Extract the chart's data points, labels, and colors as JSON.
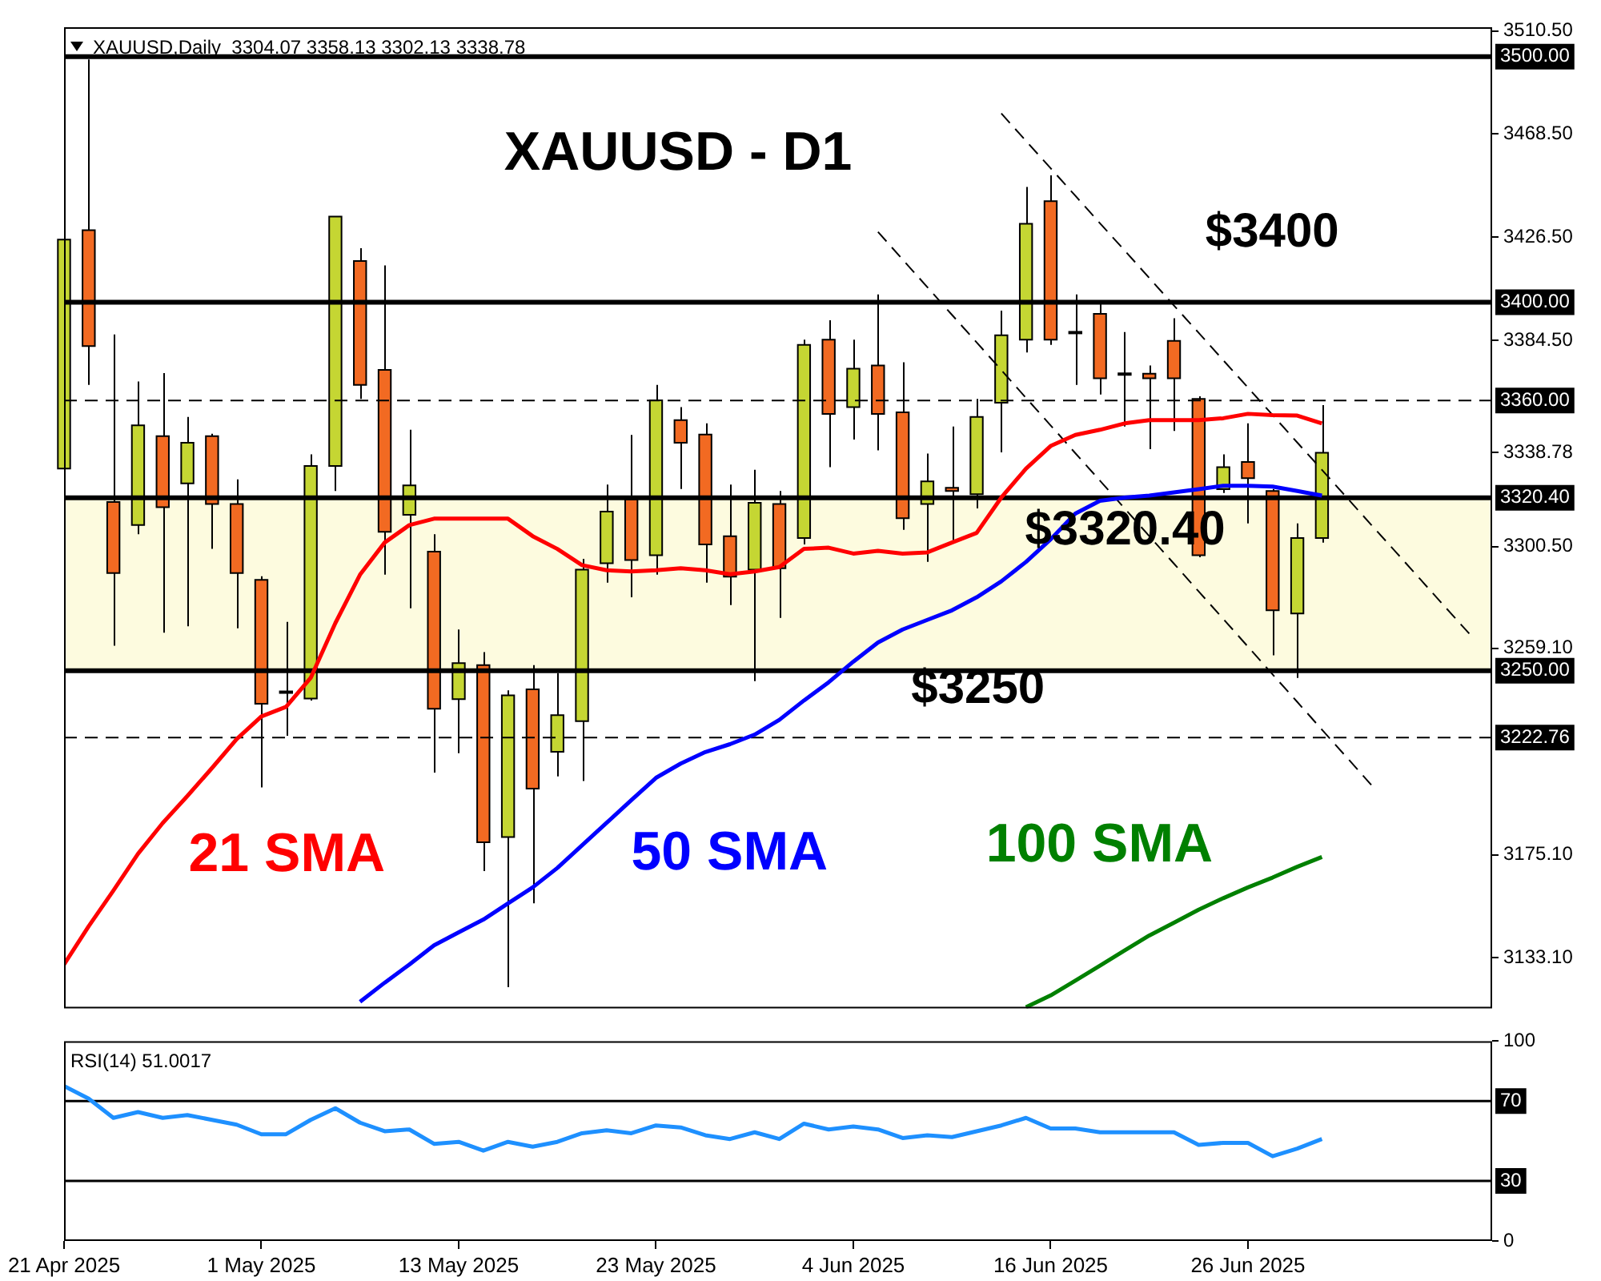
{
  "chart_data": [
    {
      "type": "candlestick",
      "title": "XAUUSD,Daily  3304.07 3358.13 3302.13 3338.78",
      "subtitle": "XAUUSD - D1",
      "categories": [
        null,
        null,
        null,
        null,
        null,
        null,
        null,
        null,
        null,
        null,
        null,
        null,
        null,
        null,
        null,
        null,
        null,
        null,
        null,
        null,
        null,
        null,
        null,
        null,
        null,
        null,
        null,
        null,
        null,
        null,
        null,
        null,
        null,
        null,
        null,
        null,
        null,
        null,
        null,
        null,
        null,
        null,
        null,
        null,
        null,
        null,
        null,
        null,
        null,
        null,
        null,
        null,
        null,
        null,
        null,
        null,
        null,
        null
      ],
      "ohlc": [
        [
          3332.3,
          3430.7,
          3330.0,
          3425.5
        ],
        [
          3429.4,
          3498.9,
          3366.4,
          3382.2
        ],
        [
          3318.7,
          3386.9,
          3260.2,
          3289.8
        ],
        [
          3309.3,
          3367.8,
          3305.6,
          3349.9
        ],
        [
          3345.5,
          3371.2,
          3265.5,
          3316.6
        ],
        [
          3326.3,
          3353.3,
          3268.1,
          3342.8
        ],
        [
          3345.5,
          3346.5,
          3299.6,
          3317.9
        ],
        [
          3317.9,
          3327.9,
          3267.3,
          3289.8
        ],
        [
          3287.0,
          3288.5,
          3202.5,
          3236.6
        ],
        [
          3241.0,
          3269.9,
          3223.5,
          3241.6
        ],
        [
          3238.7,
          3338.1,
          3237.9,
          3333.4
        ],
        [
          3333.4,
          3435.0,
          3323.2,
          3434.9
        ],
        [
          3416.8,
          3422.0,
          3360.7,
          3366.4
        ],
        [
          3372.5,
          3415.0,
          3289.1,
          3306.6
        ],
        [
          3313.5,
          3348.1,
          3275.4,
          3325.5
        ],
        [
          3298.5,
          3305.6,
          3208.5,
          3234.5
        ],
        [
          3238.4,
          3266.8,
          3216.4,
          3253.1
        ],
        [
          3252.3,
          3257.6,
          3168.4,
          3180.2
        ],
        [
          3182.3,
          3242.0,
          3121.2,
          3240.0
        ],
        [
          3242.4,
          3252.3,
          3155.3,
          3202.0
        ],
        [
          3217.0,
          3249.0,
          3207.0,
          3231.9
        ],
        [
          3229.5,
          3295.6,
          3205.1,
          3291.2
        ],
        [
          3293.8,
          3325.8,
          3285.9,
          3314.8
        ],
        [
          3319.8,
          3346.0,
          3279.9,
          3295.1
        ],
        [
          3297.0,
          3366.4,
          3289.1,
          3360.1
        ],
        [
          3352.0,
          3357.3,
          3324.0,
          3342.8
        ],
        [
          3346.2,
          3350.7,
          3285.9,
          3301.4
        ],
        [
          3304.8,
          3325.8,
          3276.7,
          3288.3
        ],
        [
          3291.2,
          3331.8,
          3245.8,
          3318.4
        ],
        [
          3317.9,
          3323.2,
          3271.5,
          3291.7
        ],
        [
          3304.0,
          3384.8,
          3301.4,
          3382.7
        ],
        [
          3384.8,
          3392.7,
          3332.9,
          3354.6
        ],
        [
          3357.3,
          3384.8,
          3344.1,
          3373.0
        ],
        [
          3374.3,
          3403.2,
          3339.7,
          3354.6
        ],
        [
          3355.2,
          3375.6,
          3307.4,
          3312.1
        ],
        [
          3317.9,
          3338.4,
          3294.3,
          3327.1
        ],
        [
          3324.5,
          3349.4,
          3303.0,
          3323.2
        ],
        [
          3321.9,
          3360.7,
          3316.1,
          3353.3
        ],
        [
          3359.1,
          3396.6,
          3338.9,
          3386.6
        ],
        [
          3384.8,
          3447.0,
          3379.6,
          3432.0
        ],
        [
          3441.2,
          3451.7,
          3382.7,
          3384.8
        ],
        [
          3388.0,
          3403.2,
          3366.4,
          3387.9
        ],
        [
          3395.3,
          3399.2,
          3362.5,
          3369.1
        ],
        [
          3371.0,
          3387.9,
          3349.4,
          3371.1
        ],
        [
          3370.9,
          3374.3,
          3340.2,
          3369.1
        ],
        [
          3384.3,
          3393.5,
          3347.6,
          3369.1
        ],
        [
          3360.7,
          3361.7,
          3296.2,
          3297.0
        ],
        [
          3323.9,
          3338.1,
          3322.4,
          3332.9
        ],
        [
          3335.0,
          3350.7,
          3310.0,
          3328.4
        ],
        [
          3323.2,
          3324.0,
          3256.3,
          3274.6
        ],
        [
          3273.3,
          3310.0,
          3247.1,
          3304.0
        ],
        [
          3304.07,
          3358.13,
          3302.13,
          3338.78
        ],
        null,
        null,
        null,
        null,
        null,
        null
      ],
      "colors": [
        "#c5d633",
        "#f26a22",
        "#f26a22",
        "#c5d633",
        "#f26a22",
        "#c5d633",
        "#f26a22",
        "#f26a22",
        "#f26a22",
        "#c5d633",
        "#c5d633",
        "#c5d633",
        "#f26a22",
        "#f26a22",
        "#c5d633",
        "#f26a22",
        "#c5d633",
        "#f26a22",
        "#c5d633",
        "#f26a22",
        "#c5d633",
        "#c5d633",
        "#c5d633",
        "#f26a22",
        "#c5d633",
        "#f26a22",
        "#f26a22",
        "#f26a22",
        "#c5d633",
        "#f26a22",
        "#c5d633",
        "#f26a22",
        "#c5d633",
        "#f26a22",
        "#f26a22",
        "#c5d633",
        "#f26a22",
        "#c5d633",
        "#c5d633",
        "#c5d633",
        "#f26a22",
        "#f26a22",
        "#f26a22",
        "#c5d633",
        "#f26a22",
        "#f26a22",
        "#f26a22",
        "#c5d633",
        "#f26a22",
        "#f26a22",
        "#c5d633",
        "#c5d633",
        null,
        null,
        null,
        null,
        null,
        null
      ],
      "series": [
        {
          "name": "21 SMA",
          "type": "line",
          "color": "#ff0000",
          "values": [
            3130.4,
            3146.0,
            3160.5,
            3175.5,
            3188.0,
            3199.0,
            3210.4,
            3222.2,
            3231.4,
            3235.3,
            3247.1,
            3269.4,
            3289.1,
            3302.2,
            3309.3,
            3311.9,
            3311.9,
            3311.9,
            3311.9,
            3304.8,
            3299.6,
            3293.0,
            3290.9,
            3290.4,
            3290.9,
            3291.7,
            3290.9,
            3289.3,
            3290.4,
            3292.2,
            3299.6,
            3300.1,
            3297.7,
            3298.8,
            3297.7,
            3298.2,
            3302.2,
            3306.1,
            3320.5,
            3332.3,
            3341.5,
            3346.0,
            3348.1,
            3350.7,
            3352.0,
            3352.0,
            3352.0,
            3352.8,
            3354.6,
            3354.1,
            3353.9,
            3350.7,
            null,
            null,
            null,
            null,
            null,
            null
          ]
        },
        {
          "name": "50 SMA",
          "type": "line",
          "color": "#0000ff",
          "values": [
            null,
            null,
            null,
            null,
            null,
            null,
            null,
            null,
            null,
            null,
            null,
            null,
            3115.2,
            3123.0,
            3130.4,
            3138.2,
            3143.5,
            3148.7,
            3155.3,
            3161.8,
            3169.7,
            3178.9,
            3188.1,
            3197.3,
            3206.4,
            3212.2,
            3216.9,
            3220.1,
            3224.0,
            3230.0,
            3237.9,
            3245.3,
            3253.7,
            3261.5,
            3266.8,
            3270.7,
            3274.6,
            3279.9,
            3286.4,
            3294.3,
            3303.5,
            3314.0,
            3319.2,
            3320.5,
            3321.3,
            3322.6,
            3323.9,
            3325.3,
            3325.3,
            3325.0,
            3323.2,
            3321.3,
            null,
            null,
            null,
            null,
            null,
            null
          ]
        },
        {
          "name": "100 SMA",
          "type": "line",
          "color": "#008000",
          "values": [
            null,
            null,
            null,
            null,
            null,
            null,
            null,
            null,
            null,
            null,
            null,
            null,
            null,
            null,
            null,
            null,
            null,
            null,
            null,
            null,
            null,
            null,
            null,
            null,
            null,
            null,
            null,
            null,
            null,
            null,
            null,
            null,
            null,
            null,
            null,
            null,
            null,
            null,
            null,
            3113.0,
            3117.8,
            3123.8,
            3129.9,
            3136.1,
            3142.2,
            3147.4,
            3152.7,
            3157.4,
            3161.8,
            3165.8,
            3170.2,
            3174.2,
            null,
            null,
            null,
            null,
            null,
            null
          ]
        },
        {
          "type": "line",
          "color": "#000000",
          "line_style": "dashed",
          "values": [
            null,
            null,
            null,
            null,
            null,
            null,
            null,
            null,
            null,
            null,
            null,
            null,
            null,
            null,
            null,
            null,
            null,
            null,
            null,
            null,
            null,
            null,
            null,
            null,
            null,
            null,
            null,
            null,
            null,
            null,
            null,
            null,
            null,
            null,
            null,
            null,
            null,
            null,
            3476.9,
            3465.7,
            3454.6,
            3443.4,
            3432.2,
            3421.1,
            3409.9,
            3398.7,
            3387.6,
            3376.4,
            3365.3,
            3354.1,
            3342.9,
            3331.8,
            3320.6,
            3309.4,
            3298.3,
            3287.1,
            3275.9,
            3264.8
          ]
        },
        {
          "type": "line",
          "color": "#000000",
          "line_style": "dashed",
          "values": [
            null,
            null,
            null,
            null,
            null,
            null,
            null,
            null,
            null,
            null,
            null,
            null,
            null,
            null,
            null,
            null,
            null,
            null,
            null,
            null,
            null,
            null,
            null,
            null,
            null,
            null,
            null,
            null,
            null,
            null,
            null,
            null,
            null,
            3428.7,
            3417.4,
            3406.2,
            3394.9,
            3383.7,
            3372.4,
            3361.1,
            3349.9,
            3338.6,
            3327.4,
            3316.1,
            3304.8,
            3293.6,
            3282.3,
            3271.1,
            3259.8,
            3248.5,
            3237.3,
            3226.0,
            3214.8,
            3203.5,
            null,
            null,
            null,
            null
          ]
        }
      ],
      "ylim": [
        3112.5,
        3512
      ],
      "yticks": [
        {
          "value": 3510.5,
          "label": "3510.50"
        },
        {
          "value": 3468.5,
          "label": "3468.50"
        },
        {
          "value": 3426.5,
          "label": "3426.50"
        },
        {
          "value": 3384.5,
          "label": "3384.50"
        },
        {
          "value": 3338.78,
          "label": "3338.78"
        },
        {
          "value": 3300.5,
          "label": "3300.50"
        },
        {
          "value": 3259.1,
          "label": "3259.10"
        },
        {
          "value": 3175.1,
          "label": "3175.10"
        },
        {
          "value": 3133.1,
          "label": "3133.10"
        }
      ],
      "tick_labels": "y",
      "ref_lines": [
        {
          "axis": "y",
          "value": 3500,
          "label": "3500.00",
          "color": "#000000",
          "line_style": "solid"
        },
        {
          "axis": "y",
          "value": 3400,
          "label": "3400.00",
          "color": "#000000",
          "line_style": "solid"
        },
        {
          "axis": "y",
          "value": 3360,
          "label": "3360.00",
          "color": "#000000",
          "line_style": "dashed"
        },
        {
          "axis": "y",
          "value": 3320.4,
          "label": "3320.40",
          "color": "#000000",
          "line_style": "solid"
        },
        {
          "axis": "y",
          "value": 3250,
          "label": "3250.00",
          "color": "#000000",
          "line_style": "solid"
        },
        {
          "axis": "y",
          "value": 3222.76,
          "label": "3222.76",
          "color": "#000000",
          "line_style": "dashed"
        }
      ],
      "bands": [
        {
          "axis": "y",
          "from": 3250,
          "to": 3320.4,
          "color": "#fdfbdf"
        }
      ],
      "annotations": [
        "$3400",
        "$3320.40",
        "$3250"
      ]
    },
    {
      "type": "line",
      "title": "RSI(14) 51.0017",
      "categories": [
        "21 Apr 2025",
        null,
        null,
        null,
        null,
        null,
        null,
        null,
        "1 May 2025",
        null,
        null,
        null,
        null,
        null,
        null,
        null,
        "13 May 2025",
        null,
        null,
        null,
        null,
        null,
        null,
        null,
        "23 May 2025",
        null,
        null,
        null,
        null,
        null,
        null,
        null,
        "4 Jun 2025",
        null,
        null,
        null,
        null,
        null,
        null,
        null,
        "16 Jun 2025",
        null,
        null,
        null,
        null,
        null,
        null,
        null,
        "26 Jun 2025",
        null,
        null,
        null,
        null,
        null,
        null,
        null,
        null,
        null
      ],
      "values": [
        77.5,
        71.2,
        61.6,
        64.5,
        61.6,
        63.0,
        60.6,
        58.2,
        53.4,
        53.4,
        60.6,
        66.4,
        59.2,
        54.9,
        55.8,
        48.6,
        49.6,
        45.2,
        49.6,
        47.2,
        49.6,
        53.9,
        55.4,
        53.9,
        57.8,
        56.8,
        52.9,
        51.0,
        54.4,
        51.0,
        58.7,
        55.8,
        57.3,
        55.8,
        51.5,
        52.9,
        52.0,
        54.9,
        57.8,
        61.6,
        56.3,
        56.3,
        54.4,
        54.4,
        54.4,
        54.4,
        48.1,
        49.1,
        49.1,
        42.4,
        46.2,
        51.0,
        null,
        null,
        null,
        null,
        null,
        null
      ],
      "color": "#1e90ff",
      "ylim": [
        0,
        100
      ],
      "yticks": [
        0,
        100
      ],
      "ref_lines": [
        {
          "axis": "y",
          "value": 70,
          "label": "70",
          "color": "#000000",
          "line_style": "solid"
        },
        {
          "axis": "y",
          "value": 30,
          "label": "30",
          "color": "#000000",
          "line_style": "solid"
        }
      ]
    }
  ]
}
